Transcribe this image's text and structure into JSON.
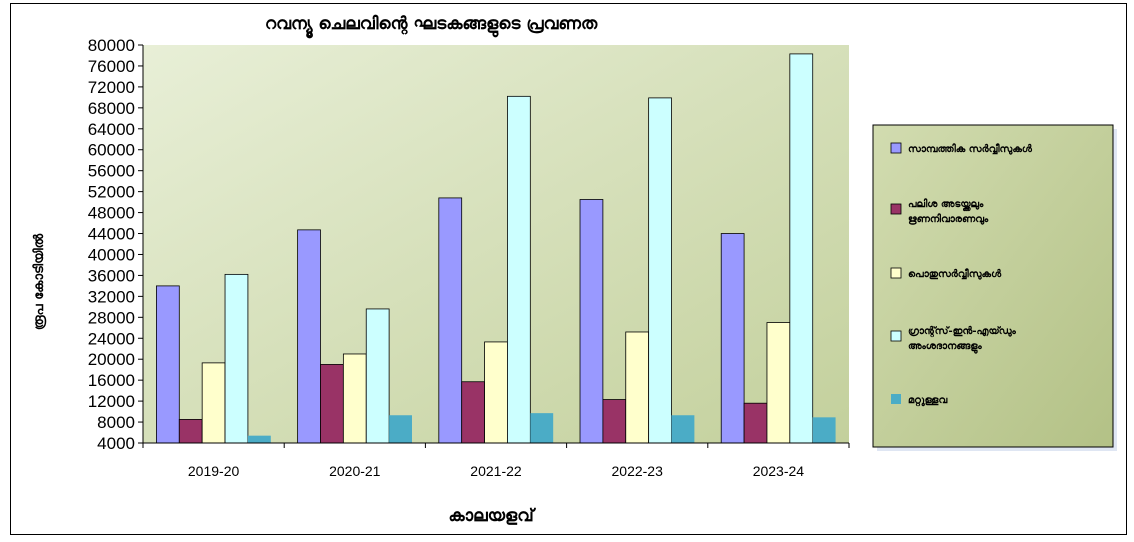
{
  "chart_data": {
    "type": "bar",
    "title": "റവന്യൂ ചെലവിന്റെ ഘടകങ്ങളുടെ പ്രവണത",
    "xlabel": "കാലയളവ്",
    "ylabel": "രൂപ കോടിയിൽ",
    "categories": [
      "2019-20",
      "2020-21",
      "2021-22",
      "2022-23",
      "2023-24"
    ],
    "ylim": [
      4000,
      80000
    ],
    "yticks": [
      4000,
      8000,
      12000,
      16000,
      20000,
      24000,
      28000,
      32000,
      36000,
      40000,
      44000,
      48000,
      52000,
      56000,
      60000,
      64000,
      68000,
      72000,
      76000,
      80000
    ],
    "legend_position": "right",
    "series": [
      {
        "name": "സാമ്പത്തിക സർവ്വീസുകൾ",
        "color": "#9999ff",
        "values": [
          34000,
          44700,
          50800,
          50500,
          44000
        ]
      },
      {
        "name": "പലിശ അടയ്ക്കലും ഋണനിവാരണവും",
        "color": "#993366",
        "values": [
          8500,
          19000,
          15700,
          12300,
          11600
        ]
      },
      {
        "name": "പൊതുസർവ്വീസുകൾ",
        "color": "#ffffcc",
        "values": [
          19300,
          21000,
          23300,
          25200,
          27000
        ]
      },
      {
        "name": "ഗ്രാന്റ്സ്-ഇൻ-എയ്ഡും അംശദാനങ്ങളും",
        "color": "#ccffff",
        "values": [
          36200,
          29600,
          70200,
          69900,
          78300
        ]
      },
      {
        "name": "മറ്റുള്ളവ",
        "color": "#4bacc6",
        "values": [
          5400,
          9300,
          9700,
          9300,
          8900
        ]
      }
    ]
  }
}
